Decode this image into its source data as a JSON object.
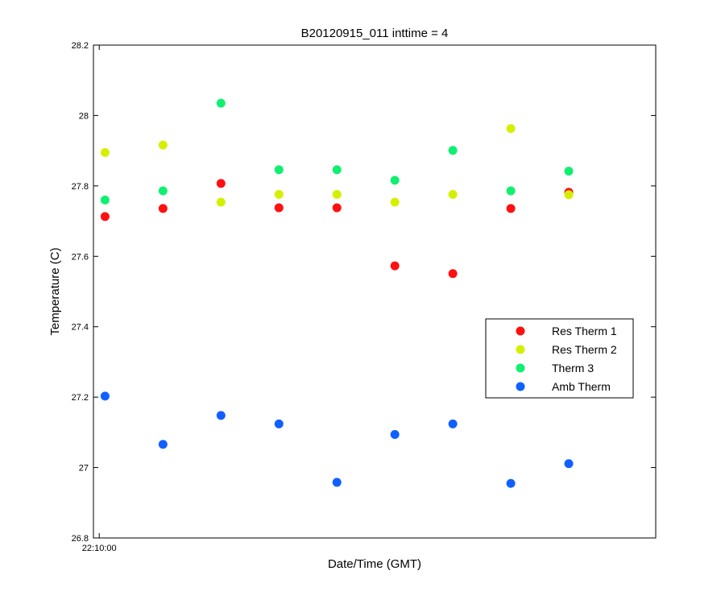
{
  "chart_data": {
    "type": "scatter",
    "title": "B20120915_011 inttime = 4",
    "xlabel": "Date/Time (GMT)",
    "ylabel": "Temperature (C)",
    "ylim": [
      26.8,
      28.2
    ],
    "yticks": [
      26.8,
      27.0,
      27.2,
      27.4,
      27.6,
      27.8,
      28.0,
      28.2
    ],
    "ytick_labels": [
      "26.8",
      "27",
      "27.2",
      "27.4",
      "27.6",
      "27.8",
      "28",
      "28.2"
    ],
    "xlim": [
      -0.1,
      9.6
    ],
    "xticks": [
      0
    ],
    "xtick_labels": [
      "22:10:00"
    ],
    "x": [
      0.1,
      1.1,
      2.1,
      3.1,
      4.1,
      5.1,
      6.1,
      7.1,
      8.1
    ],
    "grid": false,
    "legend_position": "right",
    "series": [
      {
        "name": "Res Therm 1",
        "color": "#ff1010",
        "values": [
          27.713,
          27.736,
          27.807,
          27.738,
          27.738,
          27.573,
          27.551,
          27.736,
          27.782
        ]
      },
      {
        "name": "Res Therm 2",
        "color": "#d4f000",
        "values": [
          27.895,
          27.916,
          27.754,
          27.776,
          27.776,
          27.754,
          27.776,
          27.963,
          27.775
        ]
      },
      {
        "name": "Therm 3",
        "color": "#10f070",
        "values": [
          27.76,
          27.786,
          28.035,
          27.846,
          27.846,
          27.816,
          27.901,
          27.786,
          27.842
        ]
      },
      {
        "name": "Amb Therm",
        "color": "#1060ff",
        "values": [
          27.203,
          27.066,
          27.148,
          27.124,
          26.958,
          27.094,
          27.124,
          26.955,
          27.011
        ]
      }
    ]
  }
}
